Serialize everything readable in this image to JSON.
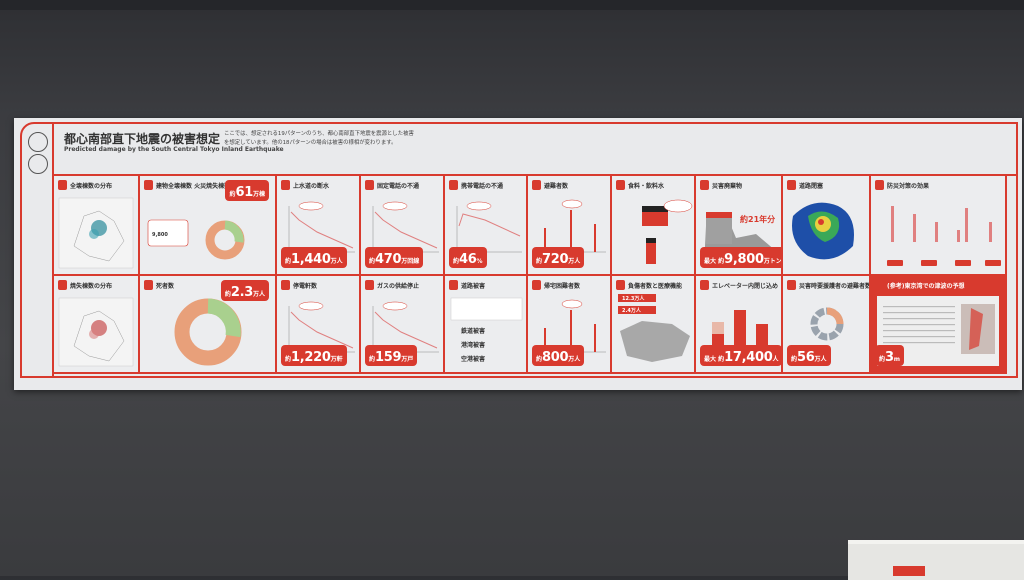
{
  "header": {
    "title": "都心南部直下地震の被害想定",
    "subtitle": "Predicted damage by the South Central Tokyo Inland Earthquake",
    "intro": "ここでは、想定される19パターンのうち、都心南部直下地震を震源とした被害を想定しています。他の18パターンの場合は被害の様相が変わります。"
  },
  "colors": {
    "accent": "#d83a2e",
    "panel": "#e9eaec",
    "wall": "#3b3c40"
  },
  "cells": [
    {
      "title": "全壊棟数の分布",
      "icon": "building-icon",
      "viz": "map"
    },
    {
      "title": "建物全壊棟数 火災焼失棟数",
      "icon": "building-icon",
      "viz": "donut-small",
      "badge": {
        "pre": "約",
        "num": "61",
        "unit": "万棟",
        "pos": "top"
      },
      "extra": "9,800"
    },
    {
      "title": "上水道の断水",
      "icon": "faucet-icon",
      "viz": "line",
      "badge": {
        "pre": "約",
        "num": "1,440",
        "unit": "万人"
      }
    },
    {
      "title": "固定電話の不通",
      "icon": "telephone-icon",
      "viz": "line",
      "badge": {
        "pre": "約",
        "num": "470",
        "unit": "万回線"
      }
    },
    {
      "title": "携帯電話の不通",
      "icon": "mobile-phone-icon",
      "viz": "line-flat",
      "badge": {
        "pre": "約",
        "num": "46",
        "unit": "%"
      }
    },
    {
      "title": "避難者数",
      "icon": "running-person-icon",
      "viz": "bars-thin",
      "badge": {
        "pre": "約",
        "num": "720",
        "unit": "万人"
      }
    },
    {
      "title": "食料・飲料水",
      "icon": "food-icon",
      "viz": "boxes"
    },
    {
      "title": "災害廃棄物",
      "icon": "waste-icon",
      "viz": "waste",
      "badge": {
        "pre": "最大 約",
        "num": "9,800",
        "unit": "万トン"
      },
      "extra": "約21年分"
    },
    {
      "title": "道路閉塞",
      "icon": "road-icon",
      "viz": "sat"
    },
    {
      "title": "防災対策の効果",
      "icon": "shield-icon",
      "viz": "effect"
    },
    {
      "title": "焼失棟数の分布",
      "icon": "house-icon",
      "viz": "map2"
    },
    {
      "title": "死者数",
      "icon": "person-icon",
      "viz": "donut-big",
      "badge": {
        "pre": "約",
        "num": "2.3",
        "unit": "万人",
        "pos": "top"
      }
    },
    {
      "title": "停電軒数",
      "icon": "light-bulb-icon",
      "viz": "line",
      "badge": {
        "pre": "約",
        "num": "1,220",
        "unit": "万軒"
      }
    },
    {
      "title": "ガスの供給停止",
      "icon": "flame-icon",
      "viz": "line",
      "badge": {
        "pre": "約",
        "num": "159",
        "unit": "万戸"
      }
    },
    {
      "title": "道路被害",
      "icon": "car-icon",
      "viz": "transport",
      "lines": [
        "鉄道被害",
        "港湾被害",
        "空港被害"
      ]
    },
    {
      "title": "帰宅困難者数",
      "icon": "walking-person-icon",
      "viz": "bars-thin",
      "badge": {
        "pre": "約",
        "num": "800",
        "unit": "万人"
      }
    },
    {
      "title": "負傷者数と医療機能",
      "icon": "medical-cross-icon",
      "viz": "kanto",
      "lines": [
        "12.3万人",
        "2.4万人"
      ]
    },
    {
      "title": "エレベーター内閉じ込め",
      "icon": "elevator-icon",
      "viz": "bars3",
      "badge": {
        "pre": "最大 約",
        "num": "17,400",
        "unit": "人"
      }
    },
    {
      "title": "災害時要援護者の避難者数",
      "icon": "wheelchair-icon",
      "viz": "donut-ring",
      "badge": {
        "pre": "約",
        "num": "56",
        "unit": "万人"
      }
    },
    {
      "title": "(参考)東京湾での津波の予想",
      "icon": "wave-icon",
      "viz": "tsunami",
      "red": true,
      "badge": {
        "pre": "約",
        "num": "3",
        "unit": "m"
      }
    }
  ]
}
